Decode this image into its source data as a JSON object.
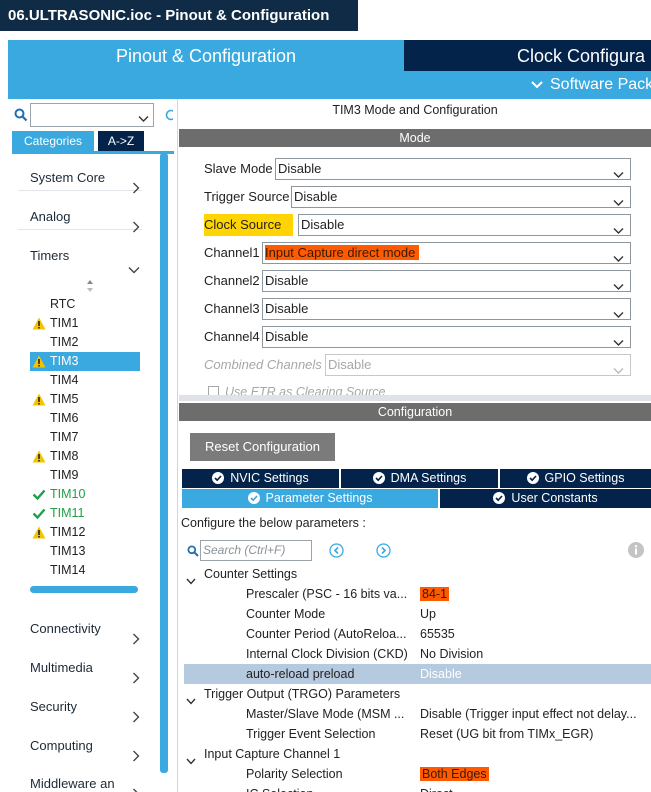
{
  "window": {
    "title": "06.ULTRASONIC.ioc - Pinout & Configuration"
  },
  "top_tabs": {
    "pinout": "Pinout & Configuration",
    "clock": "Clock Configura",
    "software_packs": "Software Pack"
  },
  "left": {
    "search_placeholder": "",
    "tabs": {
      "categories": "Categories",
      "az": "A->Z"
    },
    "categories": [
      {
        "label": "System Core"
      },
      {
        "label": "Analog"
      },
      {
        "label": "Timers"
      },
      {
        "label": "Connectivity"
      },
      {
        "label": "Multimedia"
      },
      {
        "label": "Security"
      },
      {
        "label": "Computing"
      },
      {
        "label": "Middleware an"
      }
    ],
    "timers": [
      {
        "label": "RTC",
        "status": "none"
      },
      {
        "label": "TIM1",
        "status": "warning"
      },
      {
        "label": "TIM2",
        "status": "none"
      },
      {
        "label": "TIM3",
        "status": "warning",
        "selected": true
      },
      {
        "label": "TIM4",
        "status": "none"
      },
      {
        "label": "TIM5",
        "status": "warning"
      },
      {
        "label": "TIM6",
        "status": "none"
      },
      {
        "label": "TIM7",
        "status": "none"
      },
      {
        "label": "TIM8",
        "status": "warning"
      },
      {
        "label": "TIM9",
        "status": "none"
      },
      {
        "label": "TIM10",
        "status": "ok"
      },
      {
        "label": "TIM11",
        "status": "ok"
      },
      {
        "label": "TIM12",
        "status": "warning"
      },
      {
        "label": "TIM13",
        "status": "none"
      },
      {
        "label": "TIM14",
        "status": "none"
      }
    ]
  },
  "right": {
    "title": "TIM3 Mode and Configuration",
    "mode_header": "Mode",
    "mode_rows": [
      {
        "label": "Slave Mode",
        "value": "Disable"
      },
      {
        "label": "Trigger Source",
        "value": "Disable"
      },
      {
        "label": "Clock Source",
        "value": "Disable"
      },
      {
        "label": "Channel1",
        "value": "Input Capture direct mode"
      },
      {
        "label": "Channel2",
        "value": "Disable"
      },
      {
        "label": "Channel3",
        "value": "Disable"
      },
      {
        "label": "Channel4",
        "value": "Disable"
      },
      {
        "label": "Combined Channels",
        "value": "Disable"
      }
    ],
    "etr_label": "Use ETR as Clearing Source",
    "config_header": "Configuration",
    "reset_button": "Reset Configuration",
    "config_tabs": [
      {
        "label": "NVIC Settings"
      },
      {
        "label": "DMA Settings"
      },
      {
        "label": "GPIO Settings"
      },
      {
        "label": "Parameter Settings"
      },
      {
        "label": "User Constants"
      }
    ],
    "config_hint": "Configure the below parameters :",
    "param_search_placeholder": "Search (Ctrl+F)",
    "params": {
      "counter_settings": {
        "title": "Counter Settings",
        "rows": [
          {
            "label": "Prescaler (PSC - 16 bits va...",
            "value": "84-1"
          },
          {
            "label": "Counter Mode",
            "value": "Up"
          },
          {
            "label": "Counter Period (AutoReloa...",
            "value": "65535"
          },
          {
            "label": "Internal Clock Division (CKD)",
            "value": "No Division"
          },
          {
            "label": "auto-reload preload",
            "value": "Disable"
          }
        ]
      },
      "trgo": {
        "title": "Trigger Output (TRGO) Parameters",
        "rows": [
          {
            "label": "Master/Slave Mode (MSM ...",
            "value": "Disable (Trigger input effect not delay..."
          },
          {
            "label": "Trigger Event Selection",
            "value": "Reset (UG bit from TIMx_EGR)"
          }
        ]
      },
      "ic1": {
        "title": "Input Capture Channel 1",
        "rows": [
          {
            "label": "Polarity Selection",
            "value": "Both Edges"
          },
          {
            "label": "IC Selection",
            "value": "Direct"
          }
        ]
      }
    }
  },
  "colors": {
    "navy": "#03234b",
    "accent_blue": "#39a9e0",
    "highlight_yellow": "#ffd400",
    "highlight_orange": "#ff5a00",
    "warning": "#f5c400",
    "ok_green": "#1fa04a"
  }
}
